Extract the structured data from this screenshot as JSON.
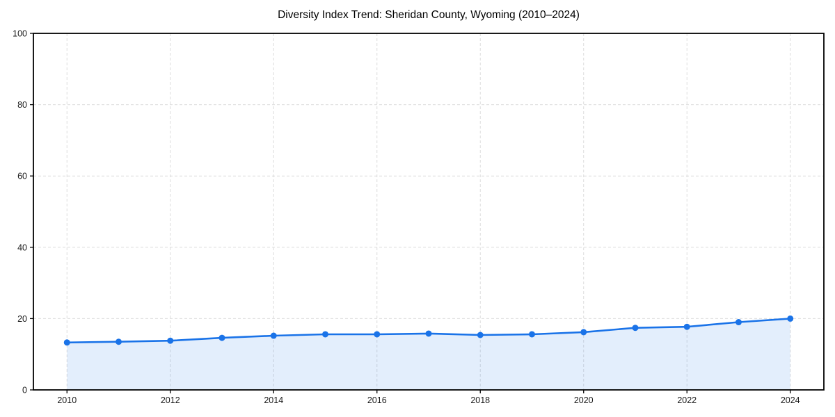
{
  "chart_data": {
    "type": "line",
    "title": "Diversity Index Trend: Sheridan County, Wyoming (2010–2024)",
    "series_name": "Diversity Index",
    "x": [
      2010,
      2011,
      2012,
      2013,
      2014,
      2015,
      2016,
      2017,
      2018,
      2019,
      2020,
      2021,
      2022,
      2023,
      2024
    ],
    "values": [
      13.3,
      13.5,
      13.8,
      14.6,
      15.2,
      15.6,
      15.6,
      15.8,
      15.4,
      15.6,
      16.2,
      17.4,
      17.7,
      19.0,
      20.0
    ],
    "xlabel": "",
    "ylabel": "",
    "xlim": [
      2009.35,
      2024.65
    ],
    "ylim": [
      0,
      100
    ],
    "xticks": [
      2010,
      2012,
      2014,
      2016,
      2018,
      2020,
      2022,
      2024
    ],
    "yticks": [
      0,
      20,
      40,
      60,
      80,
      100
    ],
    "grid": {
      "show": true,
      "style": "dashed",
      "dash": "4 3",
      "color": "#dcdcdc"
    },
    "area_fill": true,
    "legend_position": "none",
    "colors": {
      "line": "#1a73e8",
      "marker": "#1a73e8",
      "area": "rgba(26,115,232,0.12)",
      "spine": "#000000",
      "tick_label": "#1a1a1a",
      "title": "#000000"
    },
    "marker": "circle",
    "marker_radius": 4.5,
    "line_width": 2.6
  }
}
